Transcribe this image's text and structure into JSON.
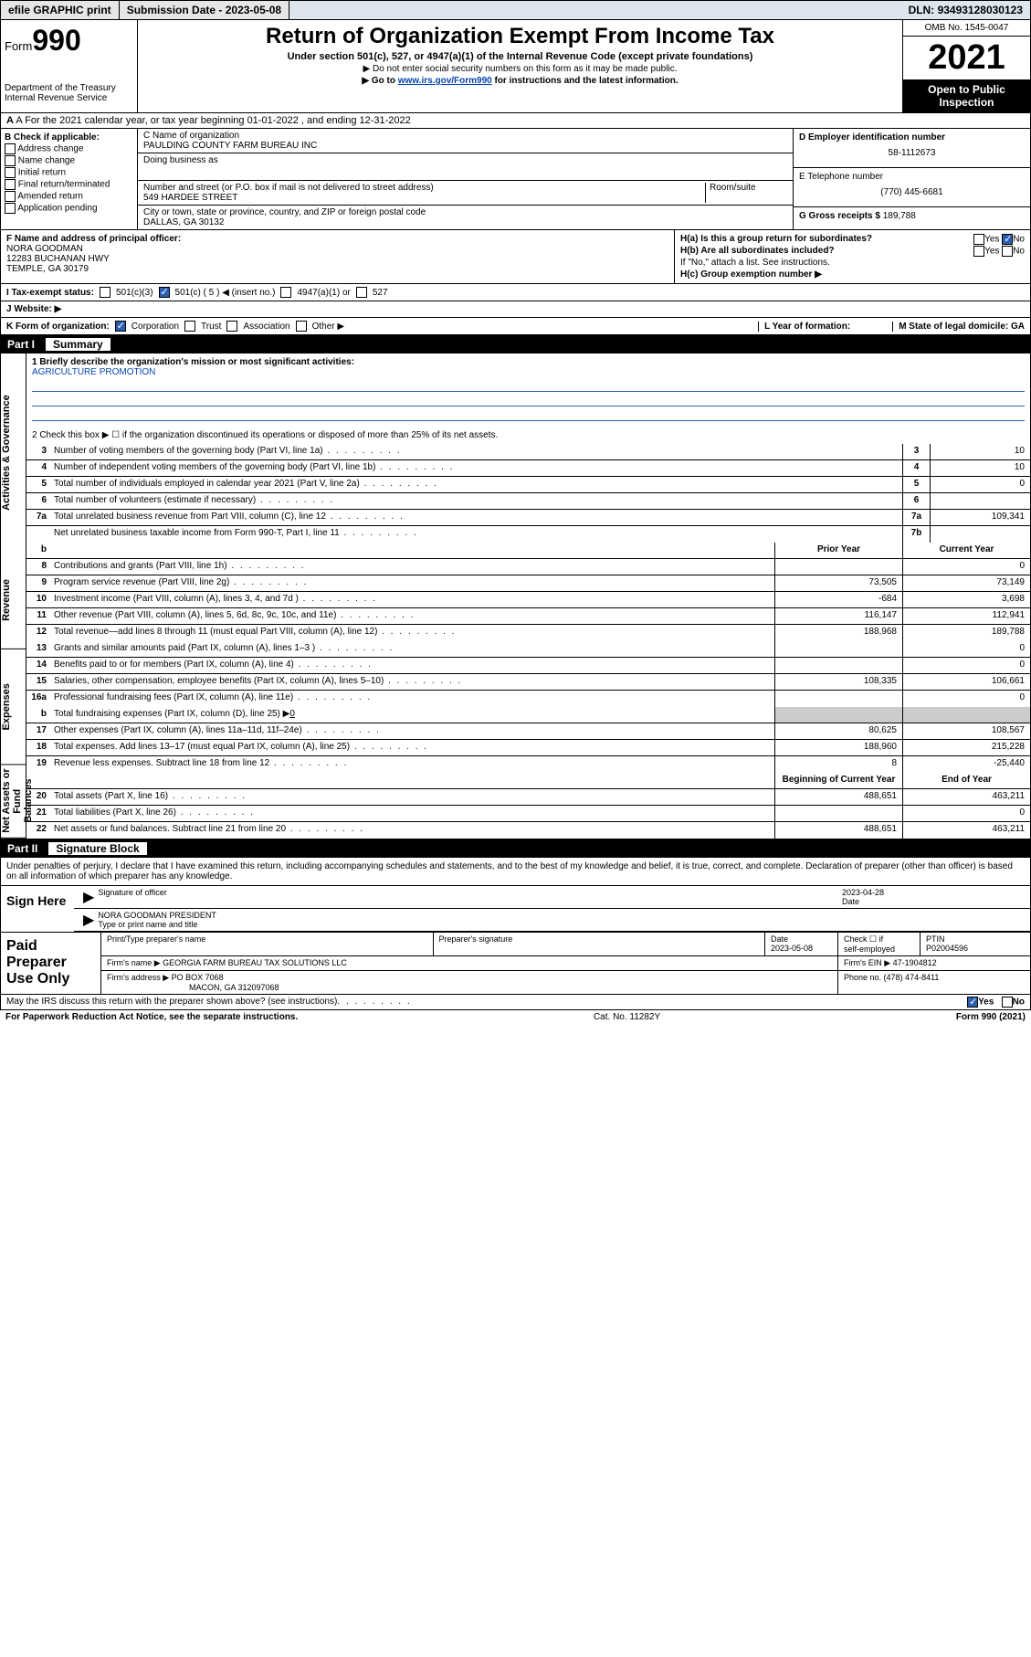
{
  "topbar": {
    "efile": "efile GRAPHIC print",
    "subdate_label": "Submission Date - ",
    "subdate": "2023-05-08",
    "dln_label": "DLN: ",
    "dln": "93493128030123"
  },
  "header": {
    "form_label": "Form",
    "form_num": "990",
    "dept": "Department of the Treasury\nInternal Revenue Service",
    "title": "Return of Organization Exempt From Income Tax",
    "subtitle": "Under section 501(c), 527, or 4947(a)(1) of the Internal Revenue Code (except private foundations)",
    "note1": "▶ Do not enter social security numbers on this form as it may be made public.",
    "note2_pre": "▶ Go to ",
    "note2_link": "www.irs.gov/Form990",
    "note2_post": " for instructions and the latest information.",
    "omb": "OMB No. 1545-0047",
    "year": "2021",
    "open": "Open to Public Inspection"
  },
  "rowA": "A For the 2021 calendar year, or tax year beginning 01-01-2022   , and ending 12-31-2022",
  "colB": {
    "title": "B Check if applicable:",
    "items": [
      "Address change",
      "Name change",
      "Initial return",
      "Final return/terminated",
      "Amended return",
      "Application pending"
    ]
  },
  "colC": {
    "name_label": "C Name of organization",
    "name": "PAULDING COUNTY FARM BUREAU INC",
    "dba_label": "Doing business as",
    "addr_label": "Number and street (or P.O. box if mail is not delivered to street address)",
    "room_label": "Room/suite",
    "addr": "549 HARDEE STREET",
    "city_label": "City or town, state or province, country, and ZIP or foreign postal code",
    "city": "DALLAS, GA  30132"
  },
  "colD": {
    "ein_label": "D Employer identification number",
    "ein": "58-1112673",
    "tel_label": "E Telephone number",
    "tel": "(770) 445-6681",
    "gross_label": "G Gross receipts $ ",
    "gross": "189,788"
  },
  "blockFH": {
    "f_label": "F Name and address of principal officer:",
    "f_name": "NORA GOODMAN",
    "f_addr1": "12283 BUCHANAN HWY",
    "f_addr2": "TEMPLE, GA  30179",
    "ha": "H(a)  Is this a group return for subordinates?",
    "hb": "H(b)  Are all subordinates included?",
    "hb_note": "If \"No,\" attach a list. See instructions.",
    "hc": "H(c)  Group exemption number ▶",
    "yes": "Yes",
    "no": "No"
  },
  "taxstatus": {
    "label": "I   Tax-exempt status:",
    "opts": [
      "501(c)(3)",
      "501(c) ( 5 ) ◀ (insert no.)",
      "4947(a)(1) or",
      "527"
    ]
  },
  "website": {
    "label": "J   Website: ▶"
  },
  "rowK": {
    "k": "K Form of organization:",
    "opts": [
      "Corporation",
      "Trust",
      "Association",
      "Other ▶"
    ],
    "l": "L Year of formation:",
    "m": "M State of legal domicile: GA"
  },
  "part1": {
    "num": "Part I",
    "title": "Summary"
  },
  "vlabels": [
    "Activities & Governance",
    "Revenue",
    "Expenses",
    "Net Assets or Fund Balances"
  ],
  "mission": {
    "q": "1   Briefly describe the organization's mission or most significant activities:",
    "a": "AGRICULTURE PROMOTION"
  },
  "line2": "2   Check this box ▶ ☐  if the organization discontinued its operations or disposed of more than 25% of its net assets.",
  "govLines": [
    {
      "n": "3",
      "t": "Number of voting members of the governing body (Part VI, line 1a)",
      "k": "3",
      "v": "10"
    },
    {
      "n": "4",
      "t": "Number of independent voting members of the governing body (Part VI, line 1b)",
      "k": "4",
      "v": "10"
    },
    {
      "n": "5",
      "t": "Total number of individuals employed in calendar year 2021 (Part V, line 2a)",
      "k": "5",
      "v": "0"
    },
    {
      "n": "6",
      "t": "Total number of volunteers (estimate if necessary)",
      "k": "6",
      "v": ""
    },
    {
      "n": "7a",
      "t": "Total unrelated business revenue from Part VIII, column (C), line 12",
      "k": "7a",
      "v": "109,341"
    },
    {
      "n": "",
      "t": "Net unrelated business taxable income from Form 990-T, Part I, line 11",
      "k": "7b",
      "v": ""
    }
  ],
  "yearHdr": {
    "b": "b",
    "prior": "Prior Year",
    "curr": "Current Year"
  },
  "revLines": [
    {
      "n": "8",
      "t": "Contributions and grants (Part VIII, line 1h)",
      "p": "",
      "c": "0"
    },
    {
      "n": "9",
      "t": "Program service revenue (Part VIII, line 2g)",
      "p": "73,505",
      "c": "73,149"
    },
    {
      "n": "10",
      "t": "Investment income (Part VIII, column (A), lines 3, 4, and 7d )",
      "p": "-684",
      "c": "3,698"
    },
    {
      "n": "11",
      "t": "Other revenue (Part VIII, column (A), lines 5, 6d, 8c, 9c, 10c, and 11e)",
      "p": "116,147",
      "c": "112,941"
    },
    {
      "n": "12",
      "t": "Total revenue—add lines 8 through 11 (must equal Part VIII, column (A), line 12)",
      "p": "188,968",
      "c": "189,788"
    }
  ],
  "expLines": [
    {
      "n": "13",
      "t": "Grants and similar amounts paid (Part IX, column (A), lines 1–3 )",
      "p": "",
      "c": "0"
    },
    {
      "n": "14",
      "t": "Benefits paid to or for members (Part IX, column (A), line 4)",
      "p": "",
      "c": "0"
    },
    {
      "n": "15",
      "t": "Salaries, other compensation, employee benefits (Part IX, column (A), lines 5–10)",
      "p": "108,335",
      "c": "106,661"
    },
    {
      "n": "16a",
      "t": "Professional fundraising fees (Part IX, column (A), line 11e)",
      "p": "",
      "c": "0"
    }
  ],
  "line16b": {
    "n": "b",
    "t": "Total fundraising expenses (Part IX, column (D), line 25) ▶",
    "v": "0"
  },
  "expLines2": [
    {
      "n": "17",
      "t": "Other expenses (Part IX, column (A), lines 11a–11d, 11f–24e)",
      "p": "80,625",
      "c": "108,567"
    },
    {
      "n": "18",
      "t": "Total expenses. Add lines 13–17 (must equal Part IX, column (A), line 25)",
      "p": "188,960",
      "c": "215,228"
    },
    {
      "n": "19",
      "t": "Revenue less expenses. Subtract line 18 from line 12",
      "p": "8",
      "c": "-25,440"
    }
  ],
  "balHdr": {
    "b": "Beginning of Current Year",
    "e": "End of Year"
  },
  "balLines": [
    {
      "n": "20",
      "t": "Total assets (Part X, line 16)",
      "p": "488,651",
      "c": "463,211"
    },
    {
      "n": "21",
      "t": "Total liabilities (Part X, line 26)",
      "p": "",
      "c": "0"
    },
    {
      "n": "22",
      "t": "Net assets or fund balances. Subtract line 21 from line 20",
      "p": "488,651",
      "c": "463,211"
    }
  ],
  "part2": {
    "num": "Part II",
    "title": "Signature Block"
  },
  "sig": {
    "decl": "Under penalties of perjury, I declare that I have examined this return, including accompanying schedules and statements, and to the best of my knowledge and belief, it is true, correct, and complete. Declaration of preparer (other than officer) is based on all information of which preparer has any knowledge.",
    "here": "Sign Here",
    "off_line": "Signature of officer",
    "date_line": "Date",
    "date": "2023-04-28",
    "name": "NORA GOODMAN  PRESIDENT",
    "name_line": "Type or print name and title"
  },
  "prep": {
    "title": "Paid Preparer Use Only",
    "h1": "Print/Type preparer's name",
    "h2": "Preparer's signature",
    "h3": "Date",
    "date": "2023-05-08",
    "h4a": "Check ☐ if",
    "h4b": "self-employed",
    "h5": "PTIN",
    "ptin": "P02004596",
    "firm_label": "Firm's name    ▶ ",
    "firm": "GEORGIA FARM BUREAU TAX SOLUTIONS LLC",
    "ein_label": "Firm's EIN ▶ ",
    "ein": "47-1904812",
    "addr_label": "Firm's address ▶ ",
    "addr1": "PO BOX 7068",
    "addr2": "MACON, GA  312097068",
    "phone_label": "Phone no. ",
    "phone": "(478) 474-8411"
  },
  "discuss": {
    "q": "May the IRS discuss this return with the preparer shown above? (see instructions)",
    "yes": "Yes",
    "no": "No"
  },
  "footer": {
    "pra": "For Paperwork Reduction Act Notice, see the separate instructions.",
    "cat": "Cat. No. 11282Y",
    "form": "Form 990 (2021)"
  }
}
